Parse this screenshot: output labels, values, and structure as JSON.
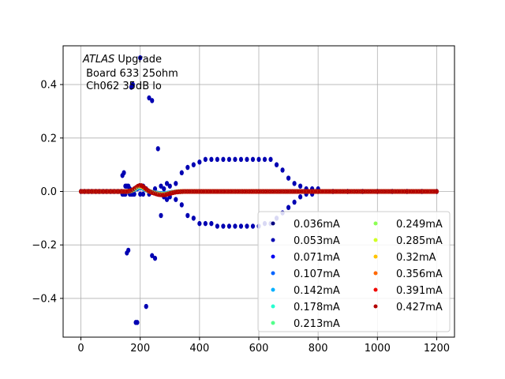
{
  "chart_data": {
    "type": "scatter",
    "title": "",
    "xlabel": "",
    "ylabel": "",
    "xlim": [
      -60,
      1260
    ],
    "ylim": [
      -0.545,
      0.545
    ],
    "xticks": [
      0,
      200,
      400,
      600,
      800,
      1000,
      1200
    ],
    "xtick_labels": [
      "0",
      "200",
      "400",
      "600",
      "800",
      "1000",
      "1200"
    ],
    "yticks": [
      -0.4,
      -0.2,
      0.0,
      0.2,
      0.4
    ],
    "ytick_labels": [
      "−0.4",
      "−0.2",
      "0.0",
      "0.2",
      "0.4"
    ],
    "grid": true,
    "annotation": {
      "italic": "ATLAS",
      "line1_rest": " Upgrade",
      "line2": " Board 633 25ohm",
      "line3": " Ch062 35dB lo"
    },
    "legend": {
      "position": "lower-right",
      "columns": 2
    },
    "series": [
      {
        "name": "0.036mA",
        "color": "#00007f"
      },
      {
        "name": "0.053mA",
        "color": "#0000b2"
      },
      {
        "name": "0.071mA",
        "color": "#0000f1"
      },
      {
        "name": "0.107mA",
        "color": "#0064ff"
      },
      {
        "name": "0.142mA",
        "color": "#00b0ff"
      },
      {
        "name": "0.178mA",
        "color": "#26ffd0"
      },
      {
        "name": "0.213mA",
        "color": "#53ff8b"
      },
      {
        "name": "0.249mA",
        "color": "#8bff53"
      },
      {
        "name": "0.285mA",
        "color": "#d0ff26"
      },
      {
        "name": "0.32mA",
        "color": "#ffc400"
      },
      {
        "name": "0.356mA",
        "color": "#ff6800"
      },
      {
        "name": "0.391mA",
        "color": "#f10800"
      },
      {
        "name": "0.427mA",
        "color": "#b20000"
      }
    ],
    "big_pulse": {
      "x": [
        0,
        12,
        25,
        37,
        50,
        62,
        75,
        87,
        100,
        112,
        125,
        137,
        140,
        145,
        150,
        155,
        160,
        165,
        170,
        175,
        180,
        185,
        190,
        200,
        210,
        220,
        230,
        240,
        250,
        260,
        270,
        280,
        290,
        300,
        320,
        340,
        360,
        380,
        400,
        420,
        440,
        460,
        480,
        500,
        520,
        540,
        560,
        580,
        600,
        620,
        640,
        660,
        680,
        700,
        720,
        740,
        760,
        780,
        800,
        850,
        900,
        950,
        1000,
        1050,
        1100,
        1150,
        1200
      ],
      "pos_branch": [
        0,
        0,
        0,
        0,
        0,
        0,
        0,
        0,
        0,
        0,
        0,
        0,
        0.06,
        0.07,
        0.02,
        0.02,
        0.02,
        0.01,
        0.39,
        0.4,
        0.01,
        0.01,
        0.01,
        0.5,
        0.02,
        0.01,
        0.35,
        0.34,
        0.01,
        0.16,
        0.02,
        0.01,
        0.03,
        0.02,
        0.03,
        0.07,
        0.09,
        0.1,
        0.11,
        0.12,
        0.12,
        0.12,
        0.12,
        0.12,
        0.12,
        0.12,
        0.12,
        0.12,
        0.12,
        0.12,
        0.12,
        0.1,
        0.08,
        0.05,
        0.03,
        0.02,
        0.01,
        0.01,
        0.01,
        0,
        0,
        0,
        0,
        0,
        0,
        0,
        0
      ],
      "neg_branch": [
        0,
        0,
        0,
        0,
        0,
        0,
        0,
        0,
        0,
        0,
        0,
        0,
        -0.01,
        -0.01,
        -0.01,
        -0.23,
        -0.22,
        -0.01,
        -0.01,
        -0.01,
        -0.01,
        -0.49,
        -0.49,
        -0.01,
        -0.01,
        -0.43,
        -0.01,
        -0.24,
        -0.25,
        -0.01,
        -0.09,
        -0.02,
        -0.03,
        -0.02,
        -0.03,
        -0.05,
        -0.09,
        -0.1,
        -0.12,
        -0.12,
        -0.12,
        -0.13,
        -0.13,
        -0.13,
        -0.13,
        -0.13,
        -0.13,
        -0.13,
        -0.13,
        -0.12,
        -0.12,
        -0.1,
        -0.08,
        -0.06,
        -0.04,
        -0.02,
        -0.01,
        -0.01,
        0,
        0,
        0,
        0,
        0,
        0,
        0,
        0,
        0
      ]
    },
    "small_pulse": {
      "x_start": 0,
      "x_end": 1200,
      "peak_x": 200,
      "peak_y": 0.023,
      "undershoot_x": 275,
      "undershoot_y": -0.013
    }
  }
}
